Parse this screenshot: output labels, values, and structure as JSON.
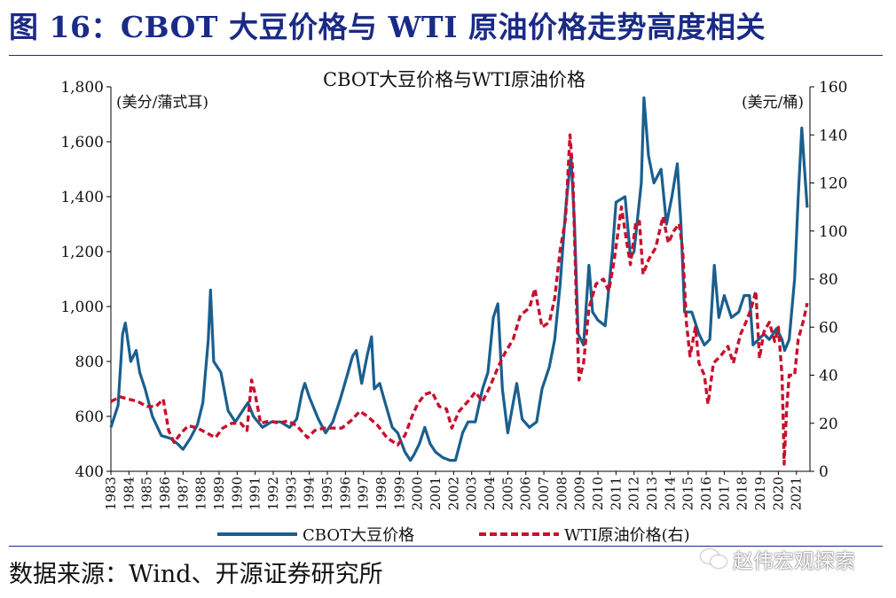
{
  "page": {
    "figure_title": "图 16：CBOT 大豆价格与 WTI 原油价格走势高度相关",
    "source": "数据来源：Wind、开源证券研究所",
    "watermark": "赵伟宏观探索"
  },
  "colors": {
    "title": "#1a2b86",
    "soy": "#1a5f8e",
    "oil": "#c8102e"
  },
  "chart_data": {
    "type": "line",
    "title": "CBOT大豆价格与WTI原油价格",
    "left_axis": {
      "label": "(美分/蒲式耳)",
      "min": 400,
      "max": 1800,
      "ticks": [
        400,
        600,
        800,
        1000,
        1200,
        1400,
        1600,
        1800
      ],
      "tick_labels": [
        "400",
        "600",
        "800",
        "1,000",
        "1,200",
        "1,400",
        "1,600",
        "1,800"
      ]
    },
    "right_axis": {
      "label": "(美元/桶)",
      "min": 0,
      "max": 160,
      "ticks": [
        0,
        20,
        40,
        60,
        80,
        100,
        120,
        140,
        160
      ],
      "tick_labels": [
        "0",
        "20",
        "40",
        "60",
        "80",
        "100",
        "120",
        "140",
        "160"
      ]
    },
    "x_axis": {
      "min": 1983,
      "max": 2021.75,
      "ticks": [
        1983,
        1984,
        1985,
        1986,
        1987,
        1988,
        1989,
        1990,
        1991,
        1992,
        1993,
        1994,
        1995,
        1996,
        1997,
        1998,
        1999,
        2000,
        2001,
        2002,
        2003,
        2004,
        2005,
        2006,
        2007,
        2008,
        2009,
        2010,
        2011,
        2012,
        2013,
        2014,
        2015,
        2016,
        2017,
        2018,
        2019,
        2020,
        2021
      ],
      "tick_labels": [
        "1983",
        "1984",
        "1985",
        "1986",
        "1987",
        "1988",
        "1989",
        "1990",
        "1991",
        "1992",
        "1993",
        "1994",
        "1995",
        "1996",
        "1997",
        "1998",
        "1999",
        "2000",
        "2001",
        "2002",
        "2003",
        "2004",
        "2005",
        "2006",
        "2007",
        "2008",
        "2009",
        "2010",
        "2011",
        "2012",
        "2013",
        "2014",
        "2015",
        "2016",
        "2017",
        "2018",
        "2019",
        "2020",
        "2021"
      ]
    },
    "series": [
      {
        "name": "CBOT大豆价格",
        "axis": "left",
        "style": "solid",
        "points": [
          [
            1983.0,
            560
          ],
          [
            1983.4,
            640
          ],
          [
            1983.65,
            900
          ],
          [
            1983.8,
            940
          ],
          [
            1984.1,
            800
          ],
          [
            1984.4,
            840
          ],
          [
            1984.6,
            760
          ],
          [
            1984.9,
            700
          ],
          [
            1985.3,
            600
          ],
          [
            1985.8,
            530
          ],
          [
            1986.3,
            520
          ],
          [
            1986.7,
            500
          ],
          [
            1987.0,
            480
          ],
          [
            1987.4,
            520
          ],
          [
            1987.8,
            570
          ],
          [
            1988.1,
            650
          ],
          [
            1988.4,
            880
          ],
          [
            1988.52,
            1060
          ],
          [
            1988.7,
            800
          ],
          [
            1989.1,
            760
          ],
          [
            1989.5,
            620
          ],
          [
            1989.9,
            580
          ],
          [
            1990.3,
            620
          ],
          [
            1990.6,
            650
          ],
          [
            1990.9,
            600
          ],
          [
            1991.4,
            560
          ],
          [
            1991.9,
            580
          ],
          [
            1992.4,
            580
          ],
          [
            1992.9,
            560
          ],
          [
            1993.3,
            590
          ],
          [
            1993.6,
            690
          ],
          [
            1993.75,
            720
          ],
          [
            1994.0,
            670
          ],
          [
            1994.5,
            590
          ],
          [
            1994.9,
            540
          ],
          [
            1995.3,
            580
          ],
          [
            1995.7,
            660
          ],
          [
            1996.1,
            750
          ],
          [
            1996.4,
            820
          ],
          [
            1996.6,
            840
          ],
          [
            1996.9,
            720
          ],
          [
            1997.2,
            820
          ],
          [
            1997.45,
            890
          ],
          [
            1997.6,
            700
          ],
          [
            1997.9,
            720
          ],
          [
            1998.2,
            650
          ],
          [
            1998.6,
            560
          ],
          [
            1998.9,
            540
          ],
          [
            1999.3,
            470
          ],
          [
            1999.6,
            440
          ],
          [
            1999.8,
            460
          ],
          [
            2000.1,
            500
          ],
          [
            2000.4,
            560
          ],
          [
            2000.7,
            500
          ],
          [
            2001.0,
            470
          ],
          [
            2001.4,
            450
          ],
          [
            2001.8,
            440
          ],
          [
            2002.1,
            440
          ],
          [
            2002.5,
            540
          ],
          [
            2002.8,
            580
          ],
          [
            2003.2,
            580
          ],
          [
            2003.6,
            700
          ],
          [
            2003.9,
            760
          ],
          [
            2004.2,
            960
          ],
          [
            2004.45,
            1010
          ],
          [
            2004.7,
            700
          ],
          [
            2005.0,
            540
          ],
          [
            2005.3,
            650
          ],
          [
            2005.5,
            720
          ],
          [
            2005.8,
            590
          ],
          [
            2006.2,
            560
          ],
          [
            2006.6,
            580
          ],
          [
            2006.9,
            700
          ],
          [
            2007.3,
            780
          ],
          [
            2007.6,
            880
          ],
          [
            2007.9,
            1080
          ],
          [
            2008.2,
            1350
          ],
          [
            2008.5,
            1550
          ],
          [
            2008.7,
            1300
          ],
          [
            2008.9,
            900
          ],
          [
            2009.2,
            860
          ],
          [
            2009.5,
            1150
          ],
          [
            2009.7,
            980
          ],
          [
            2010.0,
            950
          ],
          [
            2010.4,
            930
          ],
          [
            2010.8,
            1200
          ],
          [
            2011.0,
            1380
          ],
          [
            2011.5,
            1400
          ],
          [
            2011.8,
            1180
          ],
          [
            2012.0,
            1200
          ],
          [
            2012.4,
            1450
          ],
          [
            2012.55,
            1760
          ],
          [
            2012.8,
            1550
          ],
          [
            2013.1,
            1450
          ],
          [
            2013.5,
            1500
          ],
          [
            2013.8,
            1300
          ],
          [
            2014.1,
            1400
          ],
          [
            2014.4,
            1520
          ],
          [
            2014.6,
            1300
          ],
          [
            2014.8,
            980
          ],
          [
            2015.2,
            980
          ],
          [
            2015.6,
            900
          ],
          [
            2015.9,
            860
          ],
          [
            2016.2,
            880
          ],
          [
            2016.45,
            1150
          ],
          [
            2016.7,
            960
          ],
          [
            2017.0,
            1040
          ],
          [
            2017.4,
            960
          ],
          [
            2017.8,
            980
          ],
          [
            2018.1,
            1040
          ],
          [
            2018.4,
            1040
          ],
          [
            2018.6,
            860
          ],
          [
            2018.9,
            880
          ],
          [
            2019.2,
            900
          ],
          [
            2019.5,
            880
          ],
          [
            2019.9,
            920
          ],
          [
            2020.2,
            880
          ],
          [
            2020.35,
            840
          ],
          [
            2020.6,
            880
          ],
          [
            2020.9,
            1100
          ],
          [
            2021.1,
            1400
          ],
          [
            2021.3,
            1650
          ],
          [
            2021.45,
            1500
          ],
          [
            2021.6,
            1360
          ]
        ]
      },
      {
        "name": "WTI原油价格(右)",
        "axis": "right",
        "style": "dashed",
        "points": [
          [
            1983.0,
            29
          ],
          [
            1983.5,
            31
          ],
          [
            1984.0,
            30
          ],
          [
            1984.5,
            29
          ],
          [
            1985.0,
            27
          ],
          [
            1985.5,
            27
          ],
          [
            1985.9,
            30
          ],
          [
            1986.2,
            17
          ],
          [
            1986.5,
            12
          ],
          [
            1986.9,
            16
          ],
          [
            1987.3,
            19
          ],
          [
            1987.8,
            18
          ],
          [
            1988.3,
            16
          ],
          [
            1988.8,
            14
          ],
          [
            1989.2,
            18
          ],
          [
            1989.7,
            20
          ],
          [
            1990.2,
            20
          ],
          [
            1990.55,
            17
          ],
          [
            1990.8,
            38
          ],
          [
            1991.0,
            32
          ],
          [
            1991.3,
            20
          ],
          [
            1991.8,
            21
          ],
          [
            1992.3,
            20
          ],
          [
            1992.8,
            21
          ],
          [
            1993.3,
            19
          ],
          [
            1993.9,
            14
          ],
          [
            1994.3,
            17
          ],
          [
            1994.8,
            18
          ],
          [
            1995.3,
            18
          ],
          [
            1995.8,
            18
          ],
          [
            1996.3,
            21
          ],
          [
            1996.8,
            25
          ],
          [
            1997.2,
            23
          ],
          [
            1997.8,
            19
          ],
          [
            1998.3,
            14
          ],
          [
            1998.9,
            11
          ],
          [
            1999.3,
            15
          ],
          [
            1999.7,
            23
          ],
          [
            2000.0,
            28
          ],
          [
            2000.4,
            32
          ],
          [
            2000.8,
            33
          ],
          [
            2001.2,
            27
          ],
          [
            2001.6,
            26
          ],
          [
            2001.9,
            18
          ],
          [
            2002.3,
            25
          ],
          [
            2002.9,
            30
          ],
          [
            2003.2,
            33
          ],
          [
            2003.6,
            29
          ],
          [
            2004.0,
            35
          ],
          [
            2004.5,
            44
          ],
          [
            2004.9,
            50
          ],
          [
            2005.3,
            55
          ],
          [
            2005.7,
            65
          ],
          [
            2006.2,
            68
          ],
          [
            2006.5,
            76
          ],
          [
            2006.9,
            60
          ],
          [
            2007.3,
            62
          ],
          [
            2007.6,
            72
          ],
          [
            2007.9,
            92
          ],
          [
            2008.2,
            105
          ],
          [
            2008.45,
            140
          ],
          [
            2008.6,
            125
          ],
          [
            2008.8,
            70
          ],
          [
            2008.95,
            38
          ],
          [
            2009.2,
            45
          ],
          [
            2009.5,
            68
          ],
          [
            2009.9,
            78
          ],
          [
            2010.3,
            80
          ],
          [
            2010.6,
            75
          ],
          [
            2010.9,
            88
          ],
          [
            2011.3,
            110
          ],
          [
            2011.6,
            95
          ],
          [
            2011.8,
            86
          ],
          [
            2012.1,
            104
          ],
          [
            2012.3,
            104
          ],
          [
            2012.5,
            82
          ],
          [
            2012.8,
            88
          ],
          [
            2013.2,
            93
          ],
          [
            2013.6,
            106
          ],
          [
            2013.9,
            95
          ],
          [
            2014.2,
            100
          ],
          [
            2014.5,
            103
          ],
          [
            2014.7,
            92
          ],
          [
            2014.9,
            62
          ],
          [
            2015.1,
            48
          ],
          [
            2015.4,
            60
          ],
          [
            2015.6,
            45
          ],
          [
            2015.9,
            40
          ],
          [
            2016.1,
            28
          ],
          [
            2016.4,
            45
          ],
          [
            2016.8,
            48
          ],
          [
            2017.2,
            52
          ],
          [
            2017.5,
            45
          ],
          [
            2017.9,
            57
          ],
          [
            2018.2,
            62
          ],
          [
            2018.5,
            68
          ],
          [
            2018.75,
            75
          ],
          [
            2018.95,
            47
          ],
          [
            2019.2,
            58
          ],
          [
            2019.5,
            62
          ],
          [
            2019.8,
            54
          ],
          [
            2020.0,
            60
          ],
          [
            2020.2,
            40
          ],
          [
            2020.28,
            18
          ],
          [
            2020.32,
            3
          ],
          [
            2020.45,
            25
          ],
          [
            2020.6,
            40
          ],
          [
            2020.9,
            40
          ],
          [
            2021.1,
            55
          ],
          [
            2021.4,
            63
          ],
          [
            2021.6,
            70
          ]
        ]
      }
    ],
    "legend": [
      {
        "label": "CBOT大豆价格"
      },
      {
        "label": "WTI原油价格(右)"
      }
    ],
    "legend_position": "bottom-center"
  }
}
